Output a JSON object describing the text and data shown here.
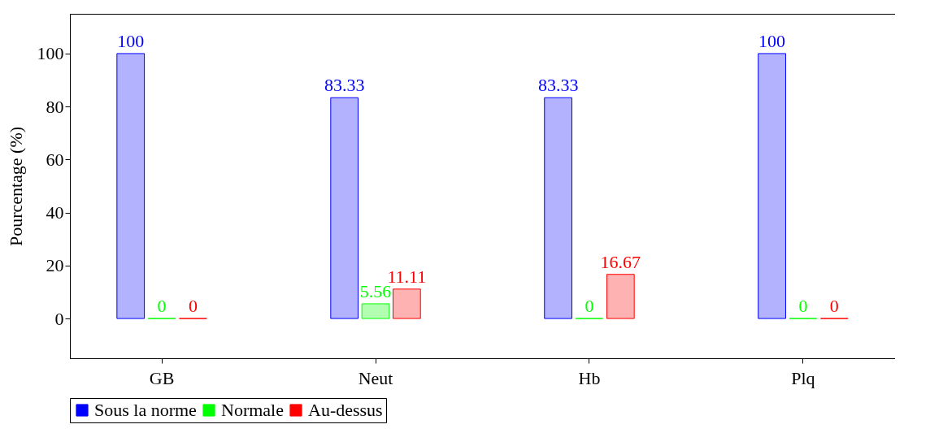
{
  "chart_data": {
    "type": "bar",
    "ylabel": "Pourcentage (%)",
    "categories": [
      "GB",
      "Neut",
      "Hb",
      "Plq"
    ],
    "series": [
      {
        "name": "Sous la norme",
        "color": "#0000ff",
        "values": [
          100,
          83.33,
          83.33,
          100
        ]
      },
      {
        "name": "Normale",
        "color": "#00ff00",
        "values": [
          0,
          5.56,
          0,
          0
        ]
      },
      {
        "name": "Au-dessus",
        "color": "#ff0000",
        "values": [
          0,
          11.11,
          16.67,
          0
        ]
      }
    ],
    "ylim": [
      -15,
      115
    ],
    "yticks": [
      0,
      20,
      40,
      60,
      80,
      100
    ],
    "data_labels": true,
    "legend": "bottom",
    "grid": false
  }
}
